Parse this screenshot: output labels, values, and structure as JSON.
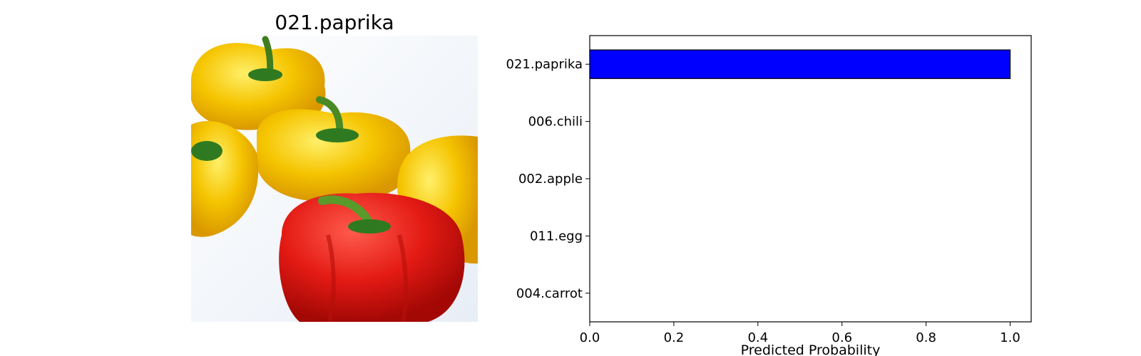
{
  "image_panel": {
    "title": "021.paprika"
  },
  "chart_data": {
    "type": "bar",
    "orientation": "horizontal",
    "categories": [
      "021.paprika",
      "006.chili",
      "002.apple",
      "011.egg",
      "004.carrot"
    ],
    "values": [
      1.0,
      0.0,
      0.0,
      0.0,
      0.0
    ],
    "xlabel": "Predicted Probability",
    "ylabel": "",
    "xlim": [
      0,
      1.05
    ],
    "xticks": [
      "0.0",
      "0.2",
      "0.4",
      "0.6",
      "0.8",
      "1.0"
    ],
    "grid": false,
    "bar_color": "#0000ff",
    "bar_edge_color": "#000000"
  }
}
